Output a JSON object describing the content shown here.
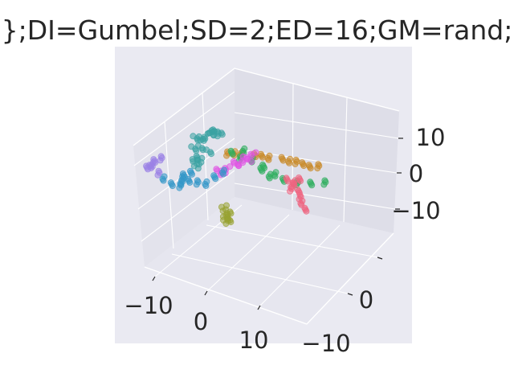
{
  "chart_data": {
    "type": "scatter",
    "projection": "3d",
    "title": "};DI=Gumbel;SD=2;ED=16;GM=rand;",
    "x_ticks": [
      "−10",
      "0",
      "10"
    ],
    "y_ticks": [
      "−10",
      "0"
    ],
    "z_ticks": [
      "10",
      "0",
      "−10"
    ],
    "xlim": [
      -15,
      15
    ],
    "ylim": [
      -15,
      15
    ],
    "zlim": [
      -15,
      15
    ],
    "grid": true,
    "background": "#eaeaf2",
    "series": [
      {
        "color": "#3ba3a3",
        "points": [
          [
            -4,
            6,
            13
          ],
          [
            -3,
            5,
            14
          ],
          [
            -3.5,
            7,
            12
          ],
          [
            -5,
            4,
            11
          ],
          [
            -2,
            6,
            15
          ],
          [
            -4,
            3,
            12.5
          ],
          [
            -3,
            8,
            10
          ],
          [
            -6,
            5,
            9
          ],
          [
            -2.5,
            4,
            13
          ],
          [
            -4.5,
            7,
            14
          ],
          [
            -3,
            2,
            11
          ],
          [
            -5,
            6,
            7
          ],
          [
            -7,
            3,
            5
          ],
          [
            -6,
            4,
            4
          ],
          [
            -5,
            2,
            6
          ]
        ]
      },
      {
        "color": "#c98a28",
        "points": [
          [
            -1,
            3,
            8
          ],
          [
            1,
            2,
            7.5
          ],
          [
            3,
            1,
            7
          ],
          [
            5,
            0,
            6.5
          ],
          [
            7,
            -1,
            6
          ],
          [
            9,
            -2,
            5
          ],
          [
            11,
            -3,
            4
          ],
          [
            12,
            -4,
            3.5
          ],
          [
            0,
            2.5,
            7.8
          ],
          [
            4,
            0.5,
            6.8
          ],
          [
            8,
            -1.5,
            5.5
          ],
          [
            10,
            -2.5,
            4.5
          ]
        ]
      },
      {
        "color": "#2fae5f",
        "points": [
          [
            2,
            6,
            12
          ],
          [
            3,
            5,
            10
          ],
          [
            4,
            3,
            8
          ],
          [
            5,
            1,
            5
          ],
          [
            6,
            -1,
            2
          ],
          [
            7,
            -2,
            0
          ],
          [
            9,
            -3,
            -1
          ],
          [
            11,
            -4,
            -1
          ],
          [
            13,
            -5,
            -1
          ],
          [
            5,
            -1,
            1
          ],
          [
            4,
            0,
            3
          ],
          [
            3,
            4,
            11
          ]
        ]
      },
      {
        "color": "#e055e3",
        "points": [
          [
            -3,
            2,
            2
          ],
          [
            -2,
            1,
            2.5
          ],
          [
            -1,
            0,
            3
          ],
          [
            0,
            -1,
            3.5
          ],
          [
            1,
            -2,
            4
          ],
          [
            -2.5,
            1.5,
            1.5
          ],
          [
            -0.5,
            -0.5,
            2.5
          ],
          [
            0.5,
            -1.5,
            3
          ]
        ]
      },
      {
        "color": "#ef6480",
        "points": [
          [
            6,
            -4,
            -2
          ],
          [
            6.5,
            -5,
            -4
          ],
          [
            7,
            -6,
            -6
          ],
          [
            7,
            -6.5,
            -8
          ],
          [
            7,
            -7,
            -10
          ],
          [
            7.5,
            -7.5,
            -12
          ],
          [
            8,
            -3,
            -1
          ],
          [
            9,
            -3,
            0
          ],
          [
            8,
            -2,
            -2
          ]
        ]
      },
      {
        "color": "#3498c8",
        "points": [
          [
            -11,
            6,
            1
          ],
          [
            -10,
            5,
            -1
          ],
          [
            -9,
            4,
            -2
          ],
          [
            -8,
            3,
            -1
          ],
          [
            -7,
            2,
            -2
          ],
          [
            -6,
            1,
            -3
          ],
          [
            -5,
            0,
            -2
          ],
          [
            -4,
            -1,
            -1
          ],
          [
            -7,
            4,
            2
          ],
          [
            -8,
            5,
            1
          ],
          [
            -9,
            3,
            0
          ],
          [
            -10,
            2,
            -3
          ]
        ]
      },
      {
        "color": "#9b82e6",
        "points": [
          [
            -12,
            8,
            5
          ],
          [
            -11,
            9,
            7
          ],
          [
            -10,
            10,
            9
          ],
          [
            -11,
            7,
            3
          ],
          [
            -12,
            9,
            6
          ],
          [
            -10,
            8,
            8
          ]
        ]
      },
      {
        "color": "#98a332",
        "points": [
          [
            -4,
            -2,
            -12
          ],
          [
            -4.2,
            -2.5,
            -14
          ],
          [
            -3.8,
            -1.8,
            -13
          ],
          [
            -4,
            -3,
            -15
          ],
          [
            -4.4,
            -2.2,
            -11
          ],
          [
            -3.9,
            -2.8,
            -12.5
          ]
        ]
      }
    ]
  }
}
